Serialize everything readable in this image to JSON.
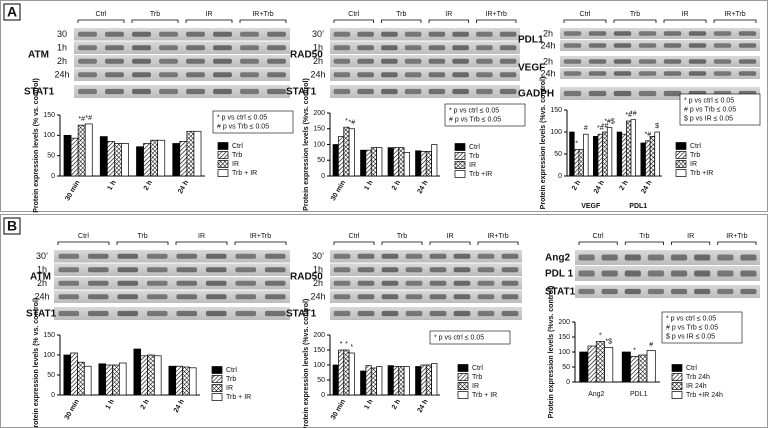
{
  "panels": [
    "A",
    "B"
  ],
  "blots": [
    {
      "groups": [
        "Ctrl",
        "Trb",
        "IR",
        "IR+Trb"
      ],
      "proteins": [
        {
          "name": "ATM",
          "times": [
            "30",
            "1h",
            "2h",
            "24h"
          ]
        }
      ],
      "loading": "STAT1"
    },
    {
      "groups": [
        "Ctrl",
        "Trb",
        "IR",
        "IR+Trb"
      ],
      "proteins": [
        {
          "name": "RAD50",
          "times": [
            "30’",
            "1h",
            "2h",
            "24h"
          ]
        }
      ],
      "loading": "STAT1"
    },
    {
      "groups": [
        "Ctrl",
        "Trb",
        "IR",
        "IR+Trb"
      ],
      "proteins": [
        {
          "name": "PDL1",
          "times": [
            "2h",
            "24h"
          ]
        },
        {
          "name": "VEGF",
          "times": [
            "2h",
            "24h"
          ]
        }
      ],
      "loading": "GADPH"
    },
    {
      "groups": [
        "Ctrl",
        "Trb",
        "IR",
        "IR+Trb"
      ],
      "proteins": [
        {
          "name": "ATM",
          "times": [
            "30’",
            "1h",
            "2h",
            "24h"
          ]
        }
      ],
      "loading": "STAT1"
    },
    {
      "groups": [
        "Ctrl",
        "Trb",
        "IR",
        "IR+Trb"
      ],
      "proteins": [
        {
          "name": "RAD50",
          "times": [
            "30’",
            "1h",
            "2h",
            "24h"
          ]
        }
      ],
      "loading": "STAT1"
    },
    {
      "groups": [
        "Ctrl",
        "Trb",
        "IR",
        "IR+Trb"
      ],
      "proteins": [
        {
          "name": "Ang2",
          "times": []
        },
        {
          "name": "PDL 1",
          "times": []
        }
      ],
      "loading": "STAT1"
    }
  ],
  "chart_data": [
    {
      "type": "bar",
      "y_label": "Protein expression levels (% vs. control)",
      "categories": [
        "30 min",
        "1 h",
        "2 h",
        "24 h"
      ],
      "ylim": [
        0,
        150
      ],
      "yticks": [
        0,
        50,
        100,
        150
      ],
      "notes": [
        "* p vs ctrl ≤ 0.05",
        "# p vs Trb ≤ 0.05"
      ],
      "series": [
        {
          "name": "Ctrl",
          "color": "#000000",
          "pattern": "solid",
          "values": [
            100,
            97,
            72,
            80
          ],
          "sig": [
            null,
            null,
            null,
            null
          ]
        },
        {
          "name": "Trb",
          "color": "#ffffff",
          "pattern": "hatch",
          "values": [
            93,
            85,
            80,
            85
          ],
          "sig": [
            null,
            null,
            null,
            null
          ]
        },
        {
          "name": "IR",
          "color": "#ffffff",
          "pattern": "checker",
          "values": [
            125,
            80,
            88,
            110
          ],
          "sig": [
            "*#",
            null,
            null,
            null
          ]
        },
        {
          "name": "Trb + IR",
          "color": "#ffffff",
          "pattern": "open",
          "values": [
            128,
            80,
            88,
            110
          ],
          "sig": [
            "*#",
            null,
            null,
            null
          ]
        }
      ]
    },
    {
      "type": "bar",
      "y_label": "Protein expression levels (%vs. control)",
      "categories": [
        "30 min",
        "1 h",
        "2 h",
        "24 h"
      ],
      "ylim": [
        0,
        200
      ],
      "yticks": [
        0,
        50,
        100,
        150,
        200
      ],
      "notes": [
        "* p vs ctrl ≤ 0.05",
        "# p vs Trb ≤ 0.05"
      ],
      "series": [
        {
          "name": "Ctrl",
          "color": "#000000",
          "pattern": "solid",
          "values": [
            100,
            82,
            90,
            80
          ],
          "sig": [
            null,
            null,
            null,
            null
          ]
        },
        {
          "name": "Trb",
          "color": "#ffffff",
          "pattern": "hatch",
          "values": [
            125,
            82,
            90,
            78
          ],
          "sig": [
            null,
            null,
            null,
            null
          ]
        },
        {
          "name": "IR",
          "color": "#ffffff",
          "pattern": "checker",
          "values": [
            155,
            90,
            90,
            78
          ],
          "sig": [
            "*",
            null,
            null,
            null
          ]
        },
        {
          "name": "Trb +IR",
          "color": "#ffffff",
          "pattern": "open",
          "values": [
            150,
            90,
            75,
            100
          ],
          "sig": [
            "*#",
            null,
            null,
            null
          ]
        }
      ]
    },
    {
      "type": "bar",
      "y_label": "Protein expression levels (%vs. control)",
      "categories": [
        "2 h",
        "24 h",
        "2 h",
        "24 h"
      ],
      "group_labels": [
        "VEGF",
        "PDL1"
      ],
      "ylim": [
        0,
        150
      ],
      "yticks": [
        0,
        50,
        100,
        150
      ],
      "notes": [
        "* p vs ctrl ≤ 0.05",
        "# p vs Trb ≤ 0.05",
        "$ p vs IR ≤ 0.05"
      ],
      "series": [
        {
          "name": "Ctrl",
          "color": "#000000",
          "pattern": "solid",
          "values": [
            100,
            90,
            100,
            75
          ],
          "sig": [
            null,
            null,
            null,
            null
          ]
        },
        {
          "name": "Trb",
          "color": "#ffffff",
          "pattern": "hatch",
          "values": [
            60,
            95,
            95,
            80
          ],
          "sig": [
            "*",
            "*#",
            null,
            "*#"
          ]
        },
        {
          "name": "IR",
          "color": "#ffffff",
          "pattern": "checker",
          "values": [
            60,
            100,
            125,
            90
          ],
          "sig": [
            null,
            "*#",
            "*#",
            null
          ]
        },
        {
          "name": "Trb +IR",
          "color": "#ffffff",
          "pattern": "open",
          "values": [
            95,
            110,
            128,
            100
          ],
          "sig": [
            "#",
            "*#$",
            "*#",
            "$"
          ]
        }
      ]
    },
    {
      "type": "bar",
      "y_label": "Protein expression levels (% vs. control)",
      "categories": [
        "30 min",
        "1 h",
        "2 h",
        "24 h"
      ],
      "ylim": [
        0,
        150
      ],
      "yticks": [
        0,
        50,
        100,
        150
      ],
      "series": [
        {
          "name": "Ctrl",
          "color": "#000000",
          "pattern": "solid",
          "values": [
            100,
            78,
            115,
            72
          ],
          "sig": [
            null,
            null,
            null,
            null
          ]
        },
        {
          "name": "Trb",
          "color": "#ffffff",
          "pattern": "hatch",
          "values": [
            105,
            75,
            98,
            72
          ],
          "sig": [
            null,
            null,
            null,
            null
          ]
        },
        {
          "name": "IR",
          "color": "#ffffff",
          "pattern": "checker",
          "values": [
            82,
            75,
            100,
            70
          ],
          "sig": [
            null,
            null,
            null,
            null
          ]
        },
        {
          "name": "Trb + IR",
          "color": "#ffffff",
          "pattern": "open",
          "values": [
            72,
            80,
            98,
            68
          ],
          "sig": [
            null,
            null,
            null,
            null
          ]
        }
      ]
    },
    {
      "type": "bar",
      "y_label": "Protein expression levels (%vs. control)",
      "categories": [
        "30 min",
        "1 h",
        "2 h",
        "24 h"
      ],
      "ylim": [
        0,
        200
      ],
      "yticks": [
        0,
        50,
        100,
        150,
        200
      ],
      "notes": [
        "* p vs ctrl ≤ 0.05"
      ],
      "series": [
        {
          "name": "Ctrl",
          "color": "#000000",
          "pattern": "solid",
          "values": [
            100,
            80,
            98,
            95
          ],
          "sig": [
            null,
            null,
            null,
            null
          ]
        },
        {
          "name": "Trb",
          "color": "#ffffff",
          "pattern": "hatch",
          "values": [
            150,
            98,
            95,
            100
          ],
          "sig": [
            "*",
            null,
            null,
            null
          ]
        },
        {
          "name": "IR",
          "color": "#ffffff",
          "pattern": "checker",
          "values": [
            150,
            90,
            95,
            100
          ],
          "sig": [
            "*",
            null,
            null,
            null
          ]
        },
        {
          "name": "Trb + IR",
          "color": "#ffffff",
          "pattern": "open",
          "values": [
            140,
            95,
            95,
            105
          ],
          "sig": [
            "*",
            null,
            null,
            null
          ]
        }
      ]
    },
    {
      "type": "bar",
      "y_label": "Protein expression levels (%vs. control)",
      "categories": [
        "Ang2",
        "PDL1"
      ],
      "ylim": [
        0,
        200
      ],
      "yticks": [
        0,
        50,
        100,
        150,
        200
      ],
      "notes": [
        "* p vs ctrl ≤ 0.05",
        "# p vs Trb ≤ 0.05",
        "$ p vs IR ≤ 0.05"
      ],
      "series": [
        {
          "name": "Ctrl",
          "color": "#000000",
          "pattern": "solid",
          "values": [
            100,
            100
          ],
          "sig": [
            null,
            null
          ]
        },
        {
          "name": "Trb 24h",
          "color": "#ffffff",
          "pattern": "hatch",
          "values": [
            120,
            85
          ],
          "sig": [
            null,
            "*"
          ]
        },
        {
          "name": "IR 24h",
          "color": "#ffffff",
          "pattern": "checker",
          "values": [
            135,
            90
          ],
          "sig": [
            "*",
            null
          ]
        },
        {
          "name": "Trb +IR 24h",
          "color": "#ffffff",
          "pattern": "open",
          "values": [
            115,
            105
          ],
          "sig": [
            "*$",
            "#"
          ]
        }
      ]
    }
  ]
}
